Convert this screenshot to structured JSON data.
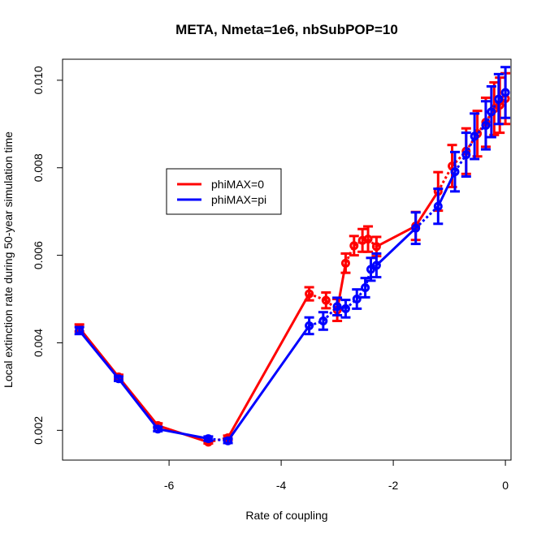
{
  "chart_data": {
    "type": "line",
    "title": "META, Nmeta=1e6, nbSubPOP=10",
    "xlabel": "Rate of coupling",
    "ylabel": "Local extinction rate during 50-year simulation time",
    "xlim": [
      -7.9,
      0.1
    ],
    "ylim": [
      0.00132,
      0.01048
    ],
    "xticks": [
      -6,
      -4,
      -2,
      0
    ],
    "xtick_labels": [
      "-6",
      "-4",
      "-2",
      "0"
    ],
    "yticks": [
      0.002,
      0.004,
      0.006,
      0.008,
      0.01
    ],
    "ytick_labels": [
      "0.002",
      "0.004",
      "0.006",
      "0.008",
      "0.010"
    ],
    "grid": false,
    "legend_position": "upper-left-center",
    "series": [
      {
        "name": "phiMAX=0",
        "color": "#ff0000",
        "points": [
          {
            "x": -7.6,
            "y": 0.00434,
            "lo": 0.00426,
            "hi": 0.00442
          },
          {
            "x": -6.9,
            "y": 0.00322,
            "lo": 0.00317,
            "hi": 0.00327
          },
          {
            "x": -6.2,
            "y": 0.00211,
            "lo": 0.00206,
            "hi": 0.00216
          },
          {
            "x": -5.3,
            "y": 0.00173,
            "lo": 0.0017,
            "hi": 0.00176
          },
          {
            "x": -4.95,
            "y": 0.00183,
            "lo": 0.00178,
            "hi": 0.00188
          },
          {
            "x": -3.5,
            "y": 0.00512,
            "lo": 0.00497,
            "hi": 0.00527
          },
          {
            "x": -3.2,
            "y": 0.00497,
            "lo": 0.00479,
            "hi": 0.00515
          },
          {
            "x": -3.0,
            "y": 0.00475,
            "lo": 0.0045,
            "hi": 0.005
          },
          {
            "x": -2.85,
            "y": 0.00582,
            "lo": 0.0056,
            "hi": 0.00604
          },
          {
            "x": -2.7,
            "y": 0.00622,
            "lo": 0.006,
            "hi": 0.00644
          },
          {
            "x": -2.55,
            "y": 0.00634,
            "lo": 0.00608,
            "hi": 0.0066
          },
          {
            "x": -2.45,
            "y": 0.00637,
            "lo": 0.00608,
            "hi": 0.00666
          },
          {
            "x": -2.3,
            "y": 0.0062,
            "lo": 0.00598,
            "hi": 0.00642
          },
          {
            "x": -1.6,
            "y": 0.00667,
            "lo": 0.00635,
            "hi": 0.00699
          },
          {
            "x": -1.2,
            "y": 0.00746,
            "lo": 0.00702,
            "hi": 0.0079
          },
          {
            "x": -0.95,
            "y": 0.00804,
            "lo": 0.00756,
            "hi": 0.00852
          },
          {
            "x": -0.7,
            "y": 0.00838,
            "lo": 0.00786,
            "hi": 0.0089
          },
          {
            "x": -0.5,
            "y": 0.00878,
            "lo": 0.00826,
            "hi": 0.0093
          },
          {
            "x": -0.35,
            "y": 0.00904,
            "lo": 0.00848,
            "hi": 0.0096
          },
          {
            "x": -0.2,
            "y": 0.00935,
            "lo": 0.00875,
            "hi": 0.00995
          },
          {
            "x": -0.1,
            "y": 0.00943,
            "lo": 0.0088,
            "hi": 0.01006
          },
          {
            "x": 0.0,
            "y": 0.00958,
            "lo": 0.009,
            "hi": 0.01016
          }
        ]
      },
      {
        "name": "phiMAX=pi",
        "color": "#0000ff",
        "points": [
          {
            "x": -7.6,
            "y": 0.00428,
            "lo": 0.0042,
            "hi": 0.00436
          },
          {
            "x": -6.9,
            "y": 0.00318,
            "lo": 0.00313,
            "hi": 0.00323
          },
          {
            "x": -6.2,
            "y": 0.00203,
            "lo": 0.00198,
            "hi": 0.00208
          },
          {
            "x": -5.3,
            "y": 0.00181,
            "lo": 0.00176,
            "hi": 0.00186
          },
          {
            "x": -4.95,
            "y": 0.00176,
            "lo": 0.00171,
            "hi": 0.00181
          },
          {
            "x": -3.5,
            "y": 0.00439,
            "lo": 0.0042,
            "hi": 0.00458
          },
          {
            "x": -3.25,
            "y": 0.0045,
            "lo": 0.0043,
            "hi": 0.0047
          },
          {
            "x": -3.0,
            "y": 0.00483,
            "lo": 0.00463,
            "hi": 0.00503
          },
          {
            "x": -2.85,
            "y": 0.00478,
            "lo": 0.00458,
            "hi": 0.00498
          },
          {
            "x": -2.65,
            "y": 0.005,
            "lo": 0.00478,
            "hi": 0.00522
          },
          {
            "x": -2.5,
            "y": 0.00526,
            "lo": 0.00504,
            "hi": 0.00548
          },
          {
            "x": -2.4,
            "y": 0.00568,
            "lo": 0.00542,
            "hi": 0.00594
          },
          {
            "x": -2.3,
            "y": 0.00577,
            "lo": 0.0055,
            "hi": 0.00604
          },
          {
            "x": -1.6,
            "y": 0.00662,
            "lo": 0.00626,
            "hi": 0.00698
          },
          {
            "x": -1.2,
            "y": 0.00712,
            "lo": 0.00672,
            "hi": 0.00752
          },
          {
            "x": -0.9,
            "y": 0.00791,
            "lo": 0.00746,
            "hi": 0.00836
          },
          {
            "x": -0.7,
            "y": 0.0083,
            "lo": 0.0078,
            "hi": 0.0088
          },
          {
            "x": -0.55,
            "y": 0.00872,
            "lo": 0.0082,
            "hi": 0.00924
          },
          {
            "x": -0.35,
            "y": 0.00897,
            "lo": 0.00842,
            "hi": 0.00952
          },
          {
            "x": -0.25,
            "y": 0.00928,
            "lo": 0.0087,
            "hi": 0.00986
          },
          {
            "x": -0.12,
            "y": 0.00957,
            "lo": 0.009,
            "hi": 0.01014
          },
          {
            "x": 0.0,
            "y": 0.00972,
            "lo": 0.00914,
            "hi": 0.0103
          }
        ]
      }
    ]
  }
}
